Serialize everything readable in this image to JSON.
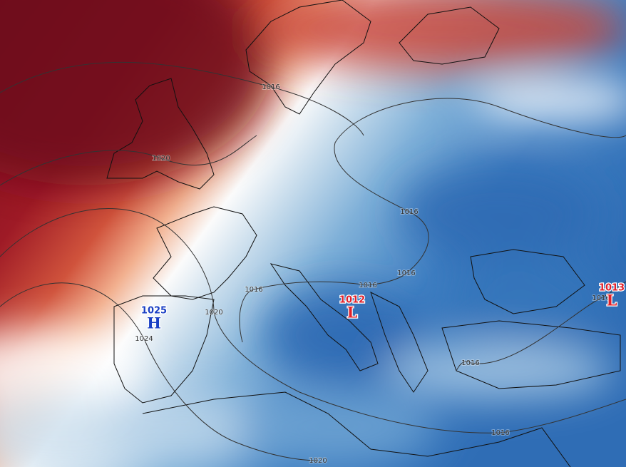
{
  "highs": [
    {
      "pressure": "1025",
      "symbol": "H"
    }
  ],
  "lows": [
    {
      "pressure": "1012",
      "symbol": "L"
    },
    {
      "pressure": "1013",
      "symbol": "L"
    }
  ],
  "isobar_labels": [
    "1016",
    "1020",
    "1016",
    "1016",
    "1016",
    "1016",
    "1020",
    "1016",
    "1024",
    "1016",
    "1016",
    "1020"
  ]
}
